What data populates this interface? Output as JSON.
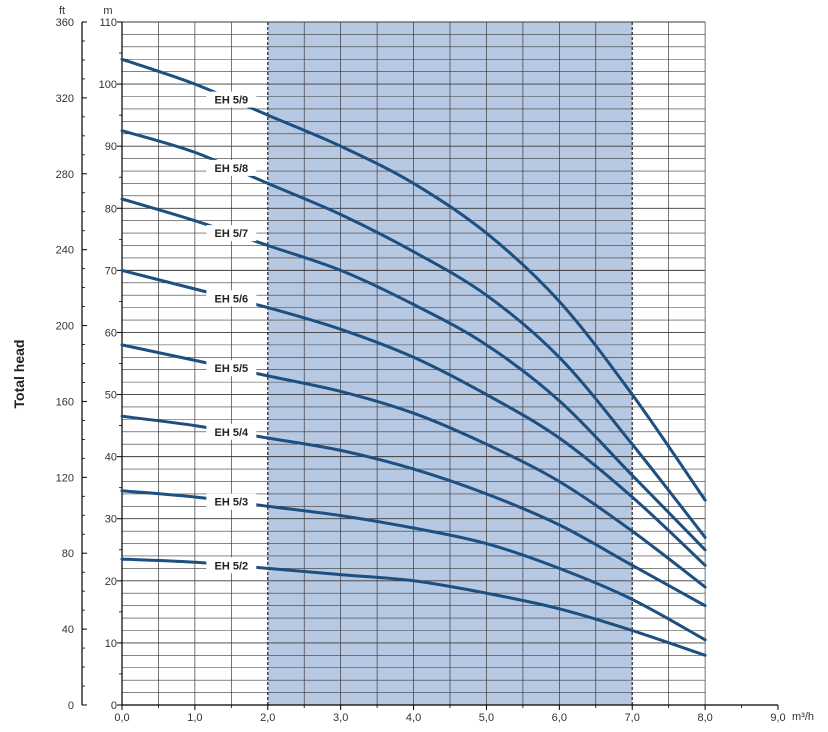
{
  "chart_data": {
    "type": "line",
    "xlabel_unit": "m³/h",
    "ylabel": "Total head",
    "y_unit_m": "m",
    "y_unit_ft": "ft",
    "xlim": [
      0,
      9
    ],
    "ylim": [
      0,
      110
    ],
    "ylim_ft": [
      0,
      360
    ],
    "x_ticks": [
      "0,0",
      "1,0",
      "2,0",
      "3,0",
      "4,0",
      "5,0",
      "6,0",
      "7,0",
      "8,0",
      "9,0"
    ],
    "y_ticks_m": [
      "0",
      "10",
      "20",
      "30",
      "40",
      "50",
      "60",
      "70",
      "80",
      "90",
      "100",
      "110"
    ],
    "y_ticks_ft": [
      "0",
      "40",
      "80",
      "120",
      "160",
      "200",
      "240",
      "280",
      "320",
      "360"
    ],
    "highlight_range": [
      2,
      7
    ],
    "colors": {
      "curve": "#1d4f80",
      "highlight": "#b7c9e2",
      "grid": "#3a3a3a"
    },
    "series": [
      {
        "name": "EH 5/9",
        "x": [
          0,
          1,
          2,
          3,
          4,
          5,
          6,
          7,
          8
        ],
        "y": [
          104,
          100,
          95,
          90,
          84,
          76,
          65,
          50,
          33
        ]
      },
      {
        "name": "EH 5/8",
        "x": [
          0,
          1,
          2,
          3,
          4,
          5,
          6,
          7,
          8
        ],
        "y": [
          92.5,
          89,
          84,
          79,
          73,
          66,
          56,
          42,
          27
        ]
      },
      {
        "name": "EH 5/7",
        "x": [
          0,
          1,
          2,
          3,
          4,
          5,
          6,
          7,
          8
        ],
        "y": [
          81.5,
          78,
          74,
          70,
          64.5,
          58,
          49,
          37,
          25
        ]
      },
      {
        "name": "EH 5/6",
        "x": [
          0,
          1,
          2,
          3,
          4,
          5,
          6,
          7,
          8
        ],
        "y": [
          70,
          67,
          64,
          60.5,
          56,
          50,
          43,
          33.5,
          22.5
        ]
      },
      {
        "name": "EH 5/5",
        "x": [
          0,
          1,
          2,
          3,
          4,
          5,
          6,
          7,
          8
        ],
        "y": [
          58,
          55.5,
          53,
          50.5,
          47,
          42,
          36,
          28,
          19
        ]
      },
      {
        "name": "EH 5/4",
        "x": [
          0,
          1,
          2,
          3,
          4,
          5,
          6,
          7,
          8
        ],
        "y": [
          46.5,
          45,
          43,
          41,
          38,
          34,
          29,
          22.5,
          16
        ]
      },
      {
        "name": "EH 5/3",
        "x": [
          0,
          1,
          2,
          3,
          4,
          5,
          6,
          7,
          8
        ],
        "y": [
          34.5,
          33.5,
          32,
          30.5,
          28.5,
          26,
          22,
          17,
          10.5
        ]
      },
      {
        "name": "EH 5/2",
        "x": [
          0,
          1,
          2,
          3,
          4,
          5,
          6,
          7,
          8
        ],
        "y": [
          23.5,
          23,
          22,
          21,
          20,
          18,
          15.5,
          12,
          8
        ]
      }
    ]
  }
}
